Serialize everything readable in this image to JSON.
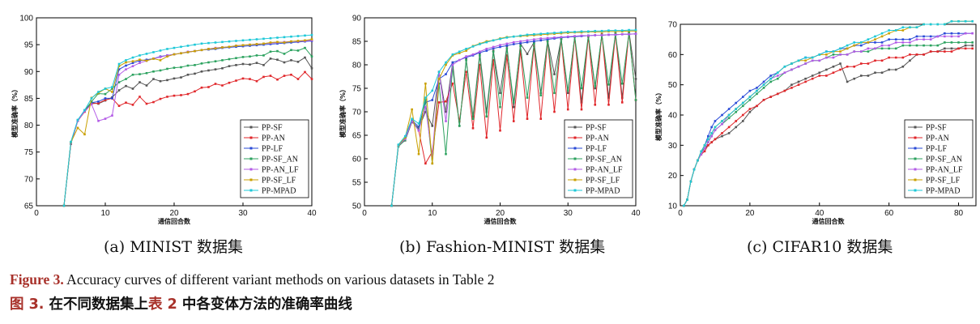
{
  "figure": {
    "caption_en_label": "Figure 3.",
    "caption_en_text": " Accuracy curves of different variant methods on various datasets in Table 2",
    "caption_zh_label": "图 3.",
    "caption_zh_pre": "  在不同数据集上",
    "caption_zh_ref": "表 2",
    "caption_zh_post": " 中各变体方法的准确率曲线"
  },
  "colors": {
    "PP-SF": "#555555",
    "PP-AN": "#e0262a",
    "PP-LF": "#2a4bd7",
    "PP-SF_AN": "#2ca25f",
    "PP-AN_LF": "#b35be6",
    "PP-SF_LF": "#c9a000",
    "PP-MPAD": "#1ec8d8"
  },
  "chart_data": [
    {
      "type": "line",
      "subcaption": "(a) MINIST 数据集",
      "xlabel": "通信回合数",
      "ylabel": "模型准确率（%）",
      "xlim": [
        0,
        40
      ],
      "ylim": [
        65,
        100
      ],
      "xticks": [
        0,
        10,
        20,
        30,
        40
      ],
      "yticks": [
        65,
        70,
        75,
        80,
        85,
        90,
        95,
        100
      ],
      "legend_position": "lower-right",
      "x": [
        4,
        5,
        6,
        7,
        8,
        9,
        10,
        11,
        12,
        13,
        14,
        15,
        16,
        17,
        18,
        19,
        20,
        21,
        22,
        23,
        24,
        25,
        26,
        27,
        28,
        29,
        30,
        31,
        32,
        33,
        34,
        35,
        36,
        37,
        38,
        39,
        40
      ],
      "series": [
        {
          "name": "PP-SF",
          "values": [
            65,
            76.5,
            80.8,
            82.6,
            84.2,
            84.0,
            84.6,
            85.2,
            86.5,
            87.3,
            86.8,
            88.0,
            87.4,
            88.6,
            88.2,
            88.4,
            88.7,
            88.9,
            89.4,
            89.6,
            90.0,
            90.2,
            90.4,
            90.6,
            91.0,
            91.2,
            91.4,
            91.3,
            91.6,
            91.2,
            92.4,
            92.2,
            91.7,
            92.1,
            91.8,
            92.6,
            90.6
          ]
        },
        {
          "name": "PP-AN",
          "values": [
            65,
            76.6,
            80.8,
            82.5,
            84.0,
            84.1,
            84.7,
            85.0,
            83.6,
            84.2,
            83.8,
            85.3,
            84.0,
            84.3,
            84.9,
            85.3,
            85.5,
            85.6,
            85.8,
            86.3,
            87.0,
            87.1,
            87.7,
            87.4,
            87.9,
            88.3,
            88.7,
            88.6,
            88.2,
            89.0,
            89.2,
            88.5,
            89.2,
            89.4,
            88.6,
            89.9,
            88.6
          ]
        },
        {
          "name": "PP-LF",
          "values": [
            65,
            76.7,
            80.9,
            82.8,
            84.2,
            84.4,
            85.0,
            85.0,
            90.4,
            91.1,
            91.6,
            92.0,
            92.2,
            92.4,
            92.8,
            93.0,
            93.2,
            93.4,
            93.6,
            93.8,
            94.0,
            94.1,
            94.2,
            94.4,
            94.5,
            94.6,
            94.7,
            94.8,
            94.9,
            95.0,
            95.1,
            95.2,
            95.3,
            95.4,
            95.5,
            95.6,
            95.7
          ]
        },
        {
          "name": "PP-SF_AN",
          "values": [
            65,
            76.8,
            80.9,
            82.7,
            84.4,
            85.9,
            85.8,
            86.8,
            88.0,
            88.6,
            89.4,
            89.5,
            89.7,
            90.0,
            90.2,
            90.5,
            90.7,
            90.8,
            91.1,
            91.2,
            91.5,
            91.7,
            91.9,
            92.1,
            92.3,
            92.5,
            92.7,
            92.8,
            93.0,
            93.0,
            93.7,
            93.8,
            93.3,
            94.0,
            93.9,
            94.4,
            92.8
          ]
        },
        {
          "name": "PP-AN_LF",
          "values": [
            65,
            76.7,
            80.8,
            82.6,
            83.9,
            80.8,
            81.2,
            81.8,
            89.4,
            90.4,
            91.0,
            91.6,
            92.0,
            92.4,
            92.7,
            93.0,
            93.2,
            93.4,
            93.7,
            93.8,
            94.0,
            94.2,
            94.4,
            94.5,
            94.6,
            94.8,
            94.9,
            95.0,
            95.1,
            95.2,
            95.3,
            95.4,
            95.5,
            95.6,
            95.6,
            95.7,
            95.8
          ]
        },
        {
          "name": "PP-SF_LF",
          "values": [
            65,
            76.8,
            79.5,
            78.3,
            85.1,
            86.0,
            86.8,
            86.2,
            91.0,
            91.7,
            91.9,
            92.2,
            92.0,
            92.4,
            92.1,
            92.8,
            93.2,
            93.4,
            93.6,
            93.8,
            94.0,
            94.2,
            94.3,
            94.5,
            94.6,
            94.8,
            94.9,
            95.0,
            95.1,
            95.2,
            95.4,
            95.5,
            95.4,
            95.6,
            95.7,
            95.8,
            96.0
          ]
        },
        {
          "name": "PP-MPAD",
          "values": [
            65,
            76.9,
            81.0,
            82.8,
            85.0,
            86.2,
            86.8,
            87.1,
            91.4,
            92.1,
            92.6,
            93.0,
            93.3,
            93.6,
            93.9,
            94.2,
            94.4,
            94.6,
            94.8,
            95.0,
            95.2,
            95.3,
            95.4,
            95.5,
            95.6,
            95.7,
            95.8,
            95.9,
            96.0,
            96.1,
            96.2,
            96.3,
            96.4,
            96.5,
            96.6,
            96.7,
            96.8
          ]
        }
      ]
    },
    {
      "type": "line",
      "subcaption": "(b) Fashion-MINIST 数据集",
      "xlabel": "通信回合数",
      "ylabel": "模型准确率（%）",
      "xlim": [
        0,
        40
      ],
      "ylim": [
        50,
        90
      ],
      "xticks": [
        0,
        10,
        20,
        30,
        40
      ],
      "yticks": [
        50,
        55,
        60,
        65,
        70,
        75,
        80,
        85,
        90
      ],
      "legend_position": "lower-right",
      "x": [
        4,
        5,
        6,
        7,
        8,
        9,
        10,
        11,
        12,
        13,
        14,
        15,
        16,
        17,
        18,
        19,
        20,
        21,
        22,
        23,
        24,
        25,
        26,
        27,
        28,
        29,
        30,
        31,
        32,
        33,
        34,
        35,
        36,
        37,
        38,
        39,
        40
      ],
      "series": [
        {
          "name": "PP-SF",
          "values": [
            50,
            62.8,
            63.9,
            67.8,
            66.5,
            70.0,
            67.0,
            78.5,
            70.0,
            80.5,
            67.0,
            81.2,
            69.0,
            82.5,
            70.0,
            83.0,
            74.0,
            84.0,
            71.0,
            84.5,
            82.3,
            84.8,
            74.0,
            85.2,
            78.0,
            85.5,
            74.0,
            86.0,
            72.0,
            86.2,
            75.0,
            86.5,
            73.0,
            86.8,
            73.0,
            87.0,
            77.0
          ]
        },
        {
          "name": "PP-AN",
          "values": [
            50,
            62.7,
            64.2,
            68.0,
            66.0,
            59.0,
            61.5,
            72.0,
            72.2,
            76.0,
            68.0,
            78.5,
            66.5,
            80.0,
            64.5,
            81.0,
            66.0,
            82.0,
            68.0,
            83.0,
            68.5,
            84.0,
            68.5,
            85.0,
            70.0,
            85.5,
            70.5,
            86.0,
            70.5,
            86.0,
            71.5,
            86.5,
            71.5,
            86.5,
            72.0,
            87.0,
            72.5
          ]
        },
        {
          "name": "PP-LF",
          "values": [
            50,
            62.9,
            64.3,
            68.2,
            66.8,
            72.0,
            72.5,
            77.0,
            78.0,
            80.5,
            81.0,
            81.6,
            82.0,
            82.6,
            83.0,
            83.5,
            83.8,
            84.1,
            84.4,
            84.6,
            84.8,
            85.0,
            85.2,
            85.4,
            85.6,
            85.8,
            85.9,
            86.0,
            86.1,
            86.2,
            86.3,
            86.3,
            86.4,
            86.4,
            86.5,
            86.5,
            86.6
          ]
        },
        {
          "name": "PP-SF_AN",
          "values": [
            50,
            62.6,
            64.0,
            68.1,
            66.2,
            72.5,
            59.0,
            76.0,
            61.0,
            79.5,
            67.0,
            81.0,
            68.5,
            82.0,
            69.0,
            82.8,
            71.0,
            83.5,
            72.0,
            84.0,
            73.0,
            84.5,
            73.5,
            85.0,
            74.0,
            85.5,
            74.5,
            86.0,
            75.0,
            86.2,
            75.5,
            86.4,
            75.8,
            86.6,
            76.0,
            86.8,
            72.5
          ]
        },
        {
          "name": "PP-AN_LF",
          "values": [
            50,
            62.8,
            64.2,
            68.0,
            66.0,
            71.0,
            60.5,
            78.5,
            68.0,
            80.0,
            81.0,
            81.8,
            82.2,
            82.8,
            83.4,
            83.8,
            84.2,
            84.5,
            84.8,
            85.0,
            85.2,
            85.4,
            85.6,
            85.7,
            85.8,
            85.9,
            86.0,
            86.1,
            86.2,
            86.2,
            86.3,
            86.3,
            86.4,
            86.4,
            86.5,
            86.5,
            86.6
          ]
        },
        {
          "name": "PP-SF_LF",
          "values": [
            50,
            62.9,
            64.5,
            70.5,
            61.0,
            76.0,
            59.0,
            77.0,
            80.0,
            82.0,
            82.5,
            83.0,
            84.0,
            84.5,
            85.0,
            85.2,
            85.6,
            85.9,
            86.0,
            86.1,
            86.2,
            86.3,
            86.4,
            86.5,
            86.6,
            86.7,
            86.8,
            86.9,
            86.9,
            87.0,
            87.0,
            87.0,
            87.1,
            87.1,
            87.1,
            87.2,
            87.2
          ]
        },
        {
          "name": "PP-MPAD",
          "values": [
            50,
            63.0,
            64.8,
            68.5,
            67.5,
            73.0,
            74.5,
            78.5,
            80.5,
            82.2,
            82.8,
            83.4,
            83.9,
            84.4,
            84.8,
            85.2,
            85.5,
            85.8,
            86.0,
            86.2,
            86.4,
            86.5,
            86.6,
            86.7,
            86.8,
            86.9,
            87.0,
            87.0,
            87.1,
            87.1,
            87.2,
            87.2,
            87.3,
            87.3,
            87.3,
            87.4,
            87.4
          ]
        }
      ]
    },
    {
      "type": "line",
      "subcaption": "(c) CIFAR10 数据集",
      "xlabel": "通信回合数",
      "ylabel": "模型准确率（%）",
      "xlim": [
        0,
        85
      ],
      "ylim": [
        10,
        70
      ],
      "xticks": [
        0,
        20,
        40,
        60,
        80
      ],
      "yticks": [
        10,
        20,
        30,
        40,
        50,
        60,
        70
      ],
      "legend_position": "lower-right",
      "x": [
        1,
        2,
        3,
        4,
        5,
        6,
        7,
        8,
        9,
        10,
        12,
        14,
        16,
        18,
        20,
        22,
        24,
        26,
        28,
        30,
        32,
        34,
        36,
        38,
        40,
        42,
        44,
        46,
        48,
        50,
        52,
        54,
        56,
        58,
        60,
        62,
        64,
        66,
        68,
        70,
        72,
        74,
        76,
        78,
        80,
        82,
        84
      ],
      "series": [
        {
          "name": "PP-SF",
          "values": [
            10,
            12,
            18,
            22,
            25,
            27,
            29,
            30,
            31,
            32,
            33,
            34,
            36,
            38,
            41,
            43,
            45,
            46,
            47,
            48,
            50,
            51,
            52,
            53,
            54,
            55,
            56,
            57,
            51,
            52,
            53,
            53,
            54,
            54,
            55,
            55,
            56,
            58,
            60,
            60,
            61,
            61,
            62,
            62,
            62,
            63,
            63
          ]
        },
        {
          "name": "PP-AN",
          "values": [
            10,
            12,
            18,
            22,
            25,
            27,
            28,
            30,
            31,
            32,
            34,
            36,
            38,
            40,
            42,
            43,
            45,
            46,
            47,
            48,
            49,
            50,
            51,
            52,
            53,
            53,
            54,
            55,
            56,
            56,
            57,
            57,
            58,
            58,
            59,
            59,
            59,
            60,
            60,
            60,
            61,
            61,
            61,
            61,
            62,
            62,
            62
          ]
        },
        {
          "name": "PP-LF",
          "values": [
            10,
            12,
            18,
            22,
            25,
            28,
            30,
            33,
            36,
            38,
            40,
            42,
            44,
            46,
            48,
            49,
            51,
            53,
            54,
            56,
            57,
            58,
            59,
            59,
            60,
            61,
            61,
            62,
            62,
            63,
            63,
            64,
            64,
            64,
            65,
            65,
            65,
            65,
            66,
            66,
            66,
            66,
            67,
            67,
            67,
            67,
            67
          ]
        },
        {
          "name": "PP-SF_AN",
          "values": [
            10,
            12,
            18,
            22,
            25,
            28,
            29,
            31,
            33,
            35,
            37,
            39,
            41,
            43,
            45,
            47,
            49,
            51,
            52,
            54,
            55,
            56,
            57,
            58,
            58,
            59,
            60,
            60,
            60,
            61,
            61,
            61,
            62,
            62,
            62,
            62,
            63,
            63,
            63,
            63,
            63,
            63,
            64,
            64,
            64,
            64,
            64
          ]
        },
        {
          "name": "PP-AN_LF",
          "values": [
            10,
            12,
            18,
            22,
            25,
            27,
            29,
            31,
            33,
            35,
            37,
            40,
            42,
            44,
            46,
            48,
            50,
            52,
            53,
            54,
            55,
            56,
            57,
            58,
            58,
            59,
            59,
            60,
            60,
            61,
            61,
            62,
            62,
            63,
            63,
            64,
            64,
            64,
            65,
            65,
            65,
            66,
            66,
            66,
            66,
            67,
            67
          ]
        },
        {
          "name": "PP-SF_LF",
          "values": [
            10,
            12,
            18,
            22,
            25,
            28,
            30,
            32,
            34,
            36,
            38,
            40,
            42,
            44,
            46,
            48,
            50,
            52,
            54,
            56,
            57,
            58,
            58,
            59,
            60,
            60,
            61,
            61,
            62,
            63,
            64,
            64,
            65,
            66,
            67,
            68,
            68,
            69,
            69,
            70,
            70,
            70,
            70,
            71,
            71,
            71,
            71
          ]
        },
        {
          "name": "PP-MPAD",
          "values": [
            10,
            12,
            18,
            22,
            25,
            28,
            30,
            32,
            34,
            36,
            38,
            40,
            42,
            44,
            46,
            48,
            50,
            52,
            54,
            56,
            57,
            58,
            59,
            59,
            60,
            61,
            61,
            62,
            63,
            64,
            64,
            65,
            66,
            67,
            68,
            68,
            69,
            69,
            69,
            70,
            70,
            70,
            70,
            71,
            71,
            71,
            71
          ]
        }
      ]
    }
  ]
}
